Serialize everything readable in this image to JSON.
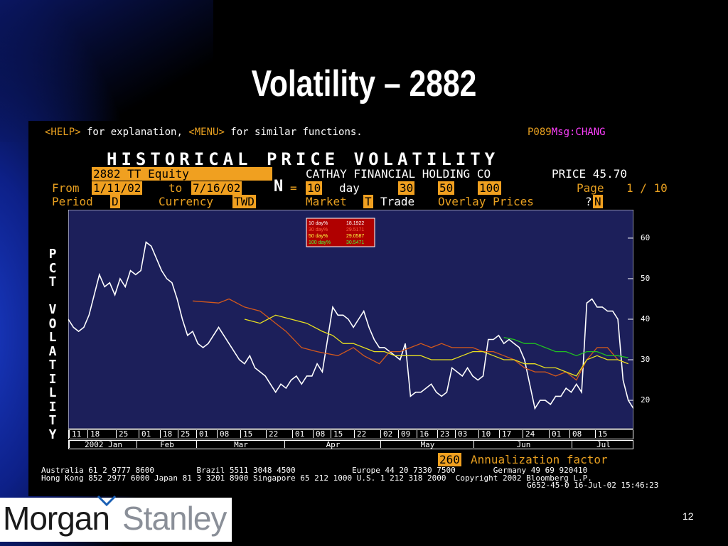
{
  "slide": {
    "title": "Volatility – 2882",
    "page_number": "12",
    "logo": {
      "part1": "Morgan",
      "part2": "Stanley"
    }
  },
  "terminal": {
    "help": {
      "help_key": "<HELP>",
      "help_text": " for explanation, ",
      "menu_key": "<MENU>",
      "menu_text": " for similar functions.",
      "page_code": "P089",
      "msg": "Msg:CHANG"
    },
    "header_title": "HISTORICAL PRICE VOLATILITY",
    "security": "2882 TT Equity",
    "company": "CATHAY FINANCIAL HOLDING CO",
    "price_label": "PRICE 45.70",
    "from_label": "From",
    "from_date": "1/11/02",
    "to_label": "to",
    "to_date": "7/16/02",
    "n_label": "N",
    "n_eq": "=",
    "n_values": [
      "10",
      "30",
      "50",
      "100"
    ],
    "day_label": "day",
    "page_label": "Page",
    "page_value": "1 / 10",
    "period_label": "Period",
    "period_value": "D",
    "currency_label": "Currency",
    "currency_value": "TWD",
    "market_label": "Market",
    "market_value": "T",
    "trade_label": "Trade",
    "overlay_label": "Overlay Prices",
    "overlay_q": "?",
    "overlay_value": "N",
    "annualization_value": "260",
    "annualization_label": "Annualization factor",
    "footer_line1": "Australia 61 2 9777 8600         Brazil 5511 3048 4500            Europe 44 20 7330 7500        Germany 49 69 920410",
    "footer_line2": "Hong Kong 852 2977 6000 Japan 81 3 3201 8900 Singapore 65 212 1000 U.S. 1 212 318 2000  Copyright 2002 Bloomberg L.P.",
    "footer_line3": "G652-45-0 16-Jul-02 15:46:23"
  },
  "colors": {
    "plot_bg": "#1c1f5a",
    "amber": "#e8a020",
    "magenta": "#ff40ff",
    "series_10": "#ffffff",
    "series_30": "#d2581c",
    "series_50": "#e8e020",
    "series_100": "#20c020"
  },
  "chart_data": {
    "type": "line",
    "title": "HISTORICAL PRICE VOLATILITY",
    "ylabel": "PCT VOLATILITY",
    "xlabel": "",
    "ylim": [
      13,
      67
    ],
    "yticks": [
      20,
      30,
      40,
      50,
      60
    ],
    "grid": false,
    "legend_position": "top-center",
    "x_day_labels": [
      "11",
      "18",
      "25",
      "01",
      "18",
      "25",
      "01",
      "08",
      "15",
      "22",
      "01",
      "08",
      "15",
      "22",
      "02",
      "09",
      "16",
      "23",
      "03",
      "10",
      "17",
      "24",
      "01",
      "08",
      "15"
    ],
    "x_month_labels": [
      "2002 Jan",
      "Feb",
      "Mar",
      "Apr",
      "May",
      "Jun",
      "Jul"
    ],
    "series": [
      {
        "name": "10 day%",
        "legend_value": "18.1922",
        "values": [
          [
            0,
            40
          ],
          [
            1,
            38
          ],
          [
            2,
            37
          ],
          [
            3,
            38
          ],
          [
            4,
            41
          ],
          [
            5,
            46
          ],
          [
            6,
            51
          ],
          [
            7,
            48
          ],
          [
            8,
            49
          ],
          [
            9,
            46
          ],
          [
            10,
            50
          ],
          [
            11,
            48
          ],
          [
            12,
            52
          ],
          [
            13,
            51
          ],
          [
            14,
            52
          ],
          [
            15,
            59
          ],
          [
            16,
            58
          ],
          [
            17,
            55
          ],
          [
            18,
            52
          ],
          [
            19,
            50
          ],
          [
            20,
            49
          ],
          [
            21,
            45
          ],
          [
            22,
            40
          ],
          [
            23,
            36
          ],
          [
            24,
            37
          ],
          [
            25,
            34
          ],
          [
            26,
            33
          ],
          [
            27,
            34
          ],
          [
            28,
            36
          ],
          [
            29,
            38
          ],
          [
            30,
            36
          ],
          [
            31,
            34
          ],
          [
            32,
            32
          ],
          [
            33,
            30
          ],
          [
            34,
            29
          ],
          [
            35,
            31
          ],
          [
            36,
            28
          ],
          [
            37,
            27
          ],
          [
            38,
            26
          ],
          [
            39,
            24
          ],
          [
            40,
            22
          ],
          [
            41,
            24
          ],
          [
            42,
            23
          ],
          [
            43,
            25
          ],
          [
            44,
            26
          ],
          [
            45,
            24
          ],
          [
            46,
            26
          ],
          [
            47,
            26
          ],
          [
            48,
            29
          ],
          [
            49,
            27
          ],
          [
            50,
            35
          ],
          [
            51,
            43
          ],
          [
            52,
            41
          ],
          [
            53,
            41
          ],
          [
            54,
            40
          ],
          [
            55,
            38
          ],
          [
            56,
            40
          ],
          [
            57,
            42
          ],
          [
            58,
            38
          ],
          [
            59,
            35
          ],
          [
            60,
            33
          ],
          [
            61,
            33
          ],
          [
            62,
            32
          ],
          [
            63,
            31
          ],
          [
            64,
            30
          ],
          [
            65,
            34
          ],
          [
            66,
            21
          ],
          [
            67,
            22
          ],
          [
            68,
            22
          ],
          [
            69,
            23
          ],
          [
            70,
            24
          ],
          [
            71,
            22
          ],
          [
            72,
            21
          ],
          [
            73,
            22
          ],
          [
            74,
            28
          ],
          [
            75,
            27
          ],
          [
            76,
            26
          ],
          [
            77,
            28
          ],
          [
            78,
            26
          ],
          [
            79,
            25
          ],
          [
            80,
            26
          ],
          [
            81,
            35
          ],
          [
            82,
            35
          ],
          [
            83,
            36
          ],
          [
            84,
            34
          ],
          [
            85,
            35
          ],
          [
            86,
            34
          ],
          [
            87,
            33
          ],
          [
            88,
            30
          ],
          [
            89,
            24
          ],
          [
            90,
            18
          ],
          [
            91,
            20
          ],
          [
            92,
            20
          ],
          [
            93,
            19
          ],
          [
            94,
            21
          ],
          [
            95,
            21
          ],
          [
            96,
            23
          ],
          [
            97,
            22
          ],
          [
            98,
            24
          ],
          [
            99,
            22
          ],
          [
            100,
            44
          ],
          [
            101,
            45
          ],
          [
            102,
            43
          ],
          [
            103,
            43
          ],
          [
            104,
            42
          ],
          [
            105,
            42
          ],
          [
            106,
            40
          ],
          [
            107,
            25
          ],
          [
            108,
            20
          ],
          [
            109,
            18
          ]
        ]
      },
      {
        "name": "30 day%",
        "legend_value": "29.5171",
        "values": [
          [
            24,
            44.5
          ],
          [
            29,
            44
          ],
          [
            31,
            45
          ],
          [
            34,
            43
          ],
          [
            37,
            42
          ],
          [
            40,
            39
          ],
          [
            42,
            37
          ],
          [
            45,
            33
          ],
          [
            48,
            32
          ],
          [
            52,
            31
          ],
          [
            55,
            33
          ],
          [
            57,
            31
          ],
          [
            60,
            29
          ],
          [
            62,
            32
          ],
          [
            64,
            32
          ],
          [
            66,
            33
          ],
          [
            68,
            34
          ],
          [
            70,
            33
          ],
          [
            72,
            34
          ],
          [
            74,
            33
          ],
          [
            76,
            33
          ],
          [
            78,
            33
          ],
          [
            80,
            32
          ],
          [
            82,
            32
          ],
          [
            84,
            31
          ],
          [
            86,
            30
          ],
          [
            88,
            28
          ],
          [
            90,
            27
          ],
          [
            92,
            27
          ],
          [
            94,
            26
          ],
          [
            96,
            27
          ],
          [
            98,
            25
          ],
          [
            100,
            30
          ],
          [
            102,
            33
          ],
          [
            104,
            33
          ],
          [
            106,
            30
          ],
          [
            108,
            29
          ]
        ]
      },
      {
        "name": "50 day%",
        "legend_value": "29.0587",
        "values": [
          [
            34,
            40
          ],
          [
            37,
            39
          ],
          [
            40,
            41
          ],
          [
            43,
            40
          ],
          [
            46,
            39
          ],
          [
            49,
            37
          ],
          [
            51,
            36
          ],
          [
            53,
            34
          ],
          [
            55,
            34
          ],
          [
            57,
            33
          ],
          [
            59,
            32
          ],
          [
            61,
            32
          ],
          [
            63,
            31
          ],
          [
            66,
            31
          ],
          [
            68,
            31
          ],
          [
            70,
            30
          ],
          [
            72,
            30
          ],
          [
            74,
            30
          ],
          [
            76,
            31
          ],
          [
            78,
            32
          ],
          [
            80,
            32
          ],
          [
            82,
            31
          ],
          [
            84,
            30
          ],
          [
            86,
            30
          ],
          [
            88,
            29
          ],
          [
            90,
            29
          ],
          [
            92,
            28
          ],
          [
            94,
            28
          ],
          [
            96,
            27
          ],
          [
            98,
            26
          ],
          [
            100,
            30
          ],
          [
            102,
            31
          ],
          [
            104,
            30
          ],
          [
            106,
            30
          ],
          [
            108,
            29
          ]
        ]
      },
      {
        "name": "100 day%",
        "legend_value": "30.5471",
        "values": [
          [
            84,
            35.5
          ],
          [
            86,
            35
          ],
          [
            88,
            34
          ],
          [
            90,
            34
          ],
          [
            92,
            33
          ],
          [
            94,
            32
          ],
          [
            96,
            32
          ],
          [
            98,
            31
          ],
          [
            100,
            32
          ],
          [
            102,
            32
          ],
          [
            104,
            31
          ],
          [
            106,
            31
          ],
          [
            108,
            30.5
          ]
        ]
      }
    ]
  }
}
